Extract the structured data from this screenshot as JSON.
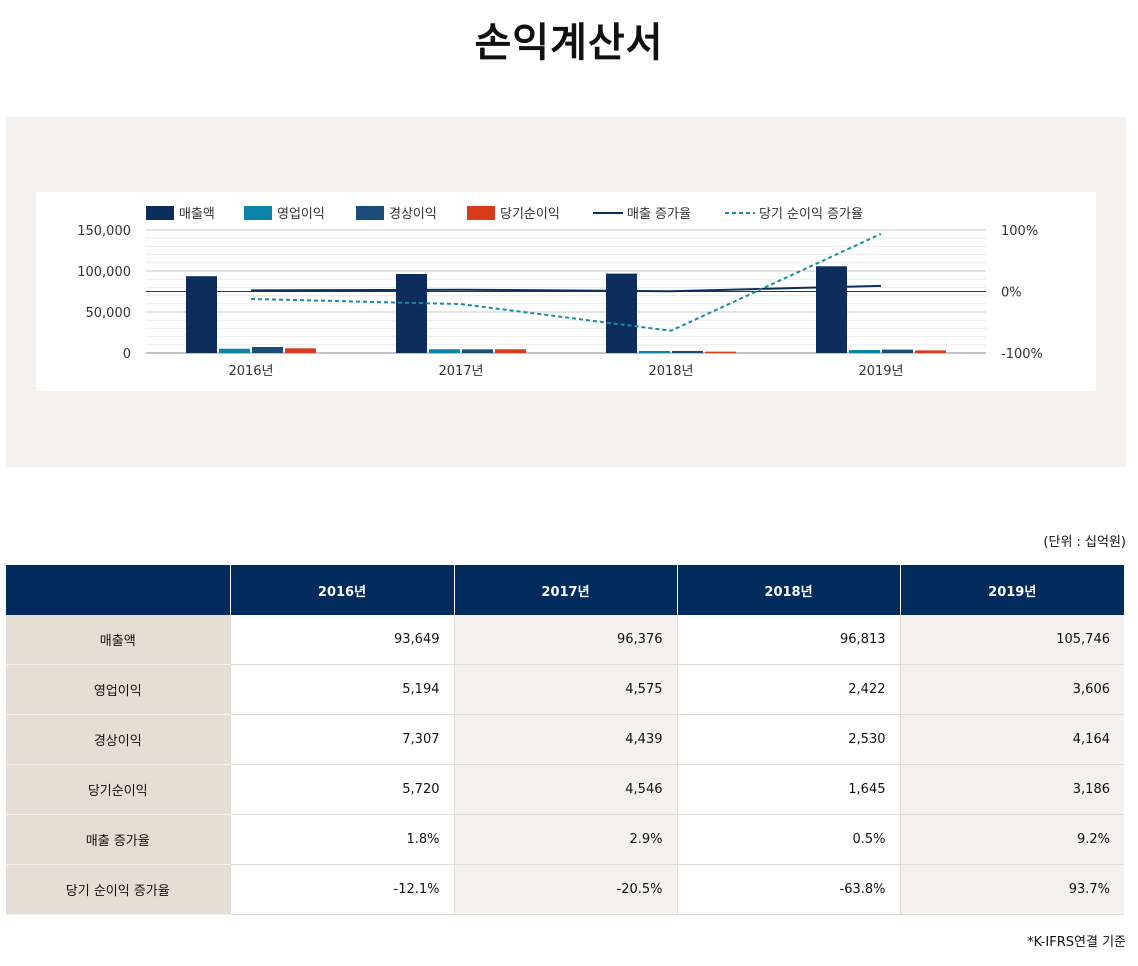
{
  "title": "손익계산서",
  "unit_label": "(단위 : 십억원)",
  "footnote": "*K-IFRS연결 기준",
  "colors": {
    "revenue": "#0d2d5c",
    "operating_income": "#0a82aa",
    "ordinary_income": "#1a4d7a",
    "net_income": "#d83a1a",
    "revenue_growth_line": "#0d2d5c",
    "net_growth_line": "#1a8ca0",
    "header_bg": "#002b5c",
    "label_bg": "#e6ddd4",
    "alt_bg": "#f4f1ef"
  },
  "chart_data": {
    "type": "bar",
    "categories": [
      "2016년",
      "2017년",
      "2018년",
      "2019년"
    ],
    "ylim": [
      0,
      150000
    ],
    "yticks": [
      "0",
      "50,000",
      "100,000",
      "150,000"
    ],
    "y2lim": [
      -100,
      100
    ],
    "y2ticks": [
      "-100%",
      "0%",
      "100%"
    ],
    "series": [
      {
        "name": "매출액",
        "kind": "bar",
        "values": [
          93649,
          96376,
          96813,
          105746
        ]
      },
      {
        "name": "영업이익",
        "kind": "bar",
        "values": [
          5194,
          4575,
          2422,
          3606
        ]
      },
      {
        "name": "경상이익",
        "kind": "bar",
        "values": [
          7307,
          4439,
          2530,
          4164
        ]
      },
      {
        "name": "당기순이익",
        "kind": "bar",
        "values": [
          5720,
          4546,
          1645,
          3186
        ]
      },
      {
        "name": "매출 증가율",
        "kind": "line",
        "axis": "right",
        "values": [
          1.8,
          2.9,
          0.5,
          9.2
        ]
      },
      {
        "name": "당기 순이익 증가율",
        "kind": "line-dashed",
        "axis": "right",
        "values": [
          -12.1,
          -20.5,
          -63.8,
          93.7
        ]
      }
    ]
  },
  "table": {
    "header_corner": "",
    "columns": [
      "2016년",
      "2017년",
      "2018년",
      "2019년"
    ],
    "rows": [
      {
        "label": "매출액",
        "values": [
          "93,649",
          "96,376",
          "96,813",
          "105,746"
        ]
      },
      {
        "label": "영업이익",
        "values": [
          "5,194",
          "4,575",
          "2,422",
          "3,606"
        ]
      },
      {
        "label": "경상이익",
        "values": [
          "7,307",
          "4,439",
          "2,530",
          "4,164"
        ]
      },
      {
        "label": "당기순이익",
        "values": [
          "5,720",
          "4,546",
          "1,645",
          "3,186"
        ]
      },
      {
        "label": "매출 증가율",
        "values": [
          "1.8%",
          "2.9%",
          "0.5%",
          "9.2%"
        ]
      },
      {
        "label": "당기 순이익 증가율",
        "values": [
          "-12.1%",
          "-20.5%",
          "-63.8%",
          "93.7%"
        ]
      }
    ]
  }
}
